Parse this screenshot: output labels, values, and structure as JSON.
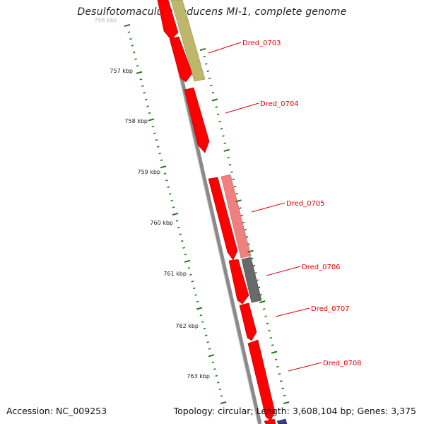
{
  "title": "Desulfotomaculum reducens MI-1, complete genome",
  "accession": "Accession: NC_009253",
  "topology": "Topology: circular; Length: 3,608,104 bp; Genes: 3,375",
  "ruler": {
    "unit": "kbp",
    "ticks": [
      "756 kbp",
      "757 kbp",
      "758 kbp",
      "759 kbp",
      "760 kbp",
      "761 kbp",
      "762 kbp",
      "763 kbp"
    ]
  },
  "colors": {
    "gene_red": "#ff0000",
    "gene_pink": "#f08080",
    "gene_olive": "#bdb76b",
    "gene_gray": "#696969",
    "gene_navy": "#3a3a8a",
    "label": "#e00000",
    "ruler": "#1a7a1a",
    "backbone": "#808080"
  },
  "genes": [
    {
      "label": "Dred_0703",
      "strand": "outer"
    },
    {
      "label": "Dred_0704",
      "strand": "inner"
    },
    {
      "label": "Dred_0705",
      "strand": "outer"
    },
    {
      "label": "Dred_0706",
      "strand": "outer"
    },
    {
      "label": "Dred_0707",
      "strand": "inner"
    },
    {
      "label": "Dred_0708",
      "strand": "inner"
    }
  ]
}
